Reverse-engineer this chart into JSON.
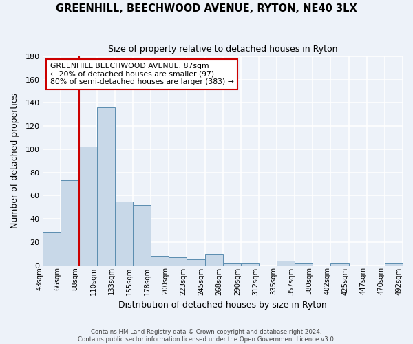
{
  "title": "GREENHILL, BEECHWOOD AVENUE, RYTON, NE40 3LX",
  "subtitle": "Size of property relative to detached houses in Ryton",
  "xlabel": "Distribution of detached houses by size in Ryton",
  "ylabel": "Number of detached properties",
  "bar_color": "#c8d8e8",
  "bar_edge_color": "#5b8db0",
  "background_color": "#edf2f9",
  "grid_color": "#ffffff",
  "bin_labels": [
    "43sqm",
    "66sqm",
    "88sqm",
    "110sqm",
    "133sqm",
    "155sqm",
    "178sqm",
    "200sqm",
    "223sqm",
    "245sqm",
    "268sqm",
    "290sqm",
    "312sqm",
    "335sqm",
    "357sqm",
    "380sqm",
    "402sqm",
    "425sqm",
    "447sqm",
    "470sqm",
    "492sqm"
  ],
  "bar_heights": [
    29,
    73,
    102,
    136,
    55,
    52,
    8,
    7,
    5,
    10,
    2,
    2,
    0,
    4,
    2,
    0,
    2,
    0,
    0,
    2
  ],
  "vline_color": "#cc0000",
  "ylim": [
    0,
    180
  ],
  "annotation_title": "GREENHILL BEECHWOOD AVENUE: 87sqm",
  "annotation_line1": "← 20% of detached houses are smaller (97)",
  "annotation_line2": "80% of semi-detached houses are larger (383) →",
  "footer1": "Contains HM Land Registry data © Crown copyright and database right 2024.",
  "footer2": "Contains public sector information licensed under the Open Government Licence v3.0."
}
